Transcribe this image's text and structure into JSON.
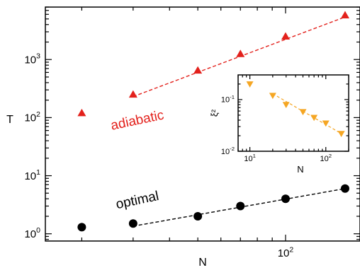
{
  "chart_data": [
    {
      "type": "scatter",
      "xlabel": "N",
      "ylabel": "T",
      "xscale": "log",
      "yscale": "log",
      "xlim": [
        15,
        180
      ],
      "ylim": [
        0.75,
        8000
      ],
      "x_ticks": [
        {
          "value": 100,
          "label_base": "10",
          "label_exp": "2"
        }
      ],
      "y_ticks": [
        {
          "value": 1,
          "label_base": "10",
          "label_exp": "0"
        },
        {
          "value": 10,
          "label_base": "10",
          "label_exp": "1"
        },
        {
          "value": 100,
          "label_base": "10",
          "label_exp": "2"
        },
        {
          "value": 1000,
          "label_base": "10",
          "label_exp": "3"
        }
      ],
      "grid": false,
      "series": [
        {
          "name": "adiabatic",
          "marker": "triangle-up",
          "color": "#e3211c",
          "x": [
            20,
            30,
            50,
            70,
            100,
            160
          ],
          "y": [
            120,
            250,
            650,
            1250,
            2500,
            5800
          ],
          "fit": {
            "style": "dashed",
            "x": [
              30,
              160
            ],
            "y": [
              230,
              5400
            ]
          }
        },
        {
          "name": "optimal",
          "marker": "circle",
          "color": "#000000",
          "x": [
            20,
            30,
            50,
            70,
            100,
            160
          ],
          "y": [
            1.3,
            1.5,
            2.0,
            3.0,
            4.0,
            6.0
          ],
          "fit": {
            "style": "dashed",
            "x": [
              30,
              160
            ],
            "y": [
              1.35,
              6.0
            ]
          }
        }
      ]
    },
    {
      "type": "scatter",
      "inset": true,
      "xlabel": "N",
      "ylabel": "ξ²",
      "xscale": "log",
      "yscale": "log",
      "xlim": [
        7,
        200
      ],
      "ylim": [
        0.01,
        0.3
      ],
      "x_ticks": [
        {
          "value": 10,
          "label_base": "10",
          "label_exp": "1"
        },
        {
          "value": 100,
          "label_base": "10",
          "label_exp": "2"
        }
      ],
      "y_ticks": [
        {
          "value": 0.01,
          "label_base": "10",
          "label_exp": "-2"
        },
        {
          "value": 0.1,
          "label_base": "10",
          "label_exp": "-1"
        }
      ],
      "grid": false,
      "series": [
        {
          "marker": "triangle-down",
          "color": "#f5a623",
          "x": [
            10,
            20,
            30,
            50,
            70,
            100,
            160
          ],
          "y": [
            0.2,
            0.12,
            0.08,
            0.058,
            0.045,
            0.035,
            0.022
          ],
          "fit": {
            "style": "dashed",
            "x": [
              20,
              160
            ],
            "y": [
              0.13,
              0.022
            ]
          }
        }
      ]
    }
  ]
}
